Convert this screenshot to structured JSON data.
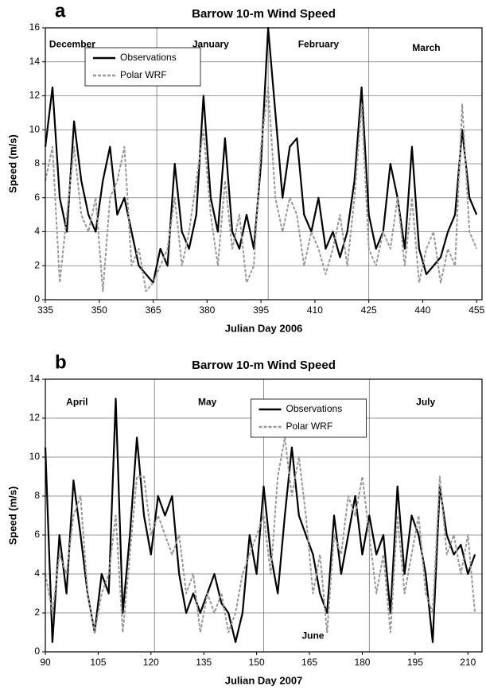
{
  "chart_data": [
    {
      "type": "line",
      "panel_label": "a",
      "title": "Barrow 10-m Wind Speed",
      "x_label": "Julian Day 2006",
      "y_label": "Speed (m/s)",
      "xlim": [
        335,
        456.5
      ],
      "xticks": [
        335,
        350,
        365,
        380,
        395,
        410,
        425,
        440,
        455
      ],
      "ylim": [
        0,
        16
      ],
      "yticks": [
        0,
        2,
        4,
        6,
        8,
        10,
        12,
        14,
        16
      ],
      "grid": true,
      "vlines": [
        366,
        397,
        425
      ],
      "legend": "upper left",
      "annotations": [
        {
          "text": "December",
          "x": 342.5,
          "y": 15
        },
        {
          "text": "January",
          "x": 381,
          "y": 15
        },
        {
          "text": "February",
          "x": 411,
          "y": 15
        },
        {
          "text": "March",
          "x": 441,
          "y": 14.8
        }
      ],
      "x": [
        335,
        337,
        339,
        341,
        343,
        345,
        347,
        349,
        351,
        353,
        355,
        357,
        359,
        361,
        363,
        365,
        367,
        369,
        371,
        373,
        375,
        377,
        379,
        381,
        383,
        385,
        387,
        389,
        391,
        393,
        395,
        397,
        399,
        401,
        403,
        405,
        407,
        409,
        411,
        413,
        415,
        417,
        419,
        421,
        423,
        425,
        427,
        429,
        431,
        433,
        435,
        437,
        439,
        441,
        443,
        445,
        447,
        449,
        451,
        453,
        455
      ],
      "series": [
        {
          "name": "Observations",
          "color": "#000000",
          "linestyle": "solid",
          "values": [
            9,
            12.5,
            6,
            4,
            10.5,
            7,
            5,
            4,
            7,
            9,
            5,
            6,
            4,
            2,
            1.5,
            1,
            3,
            2,
            8,
            4,
            3,
            5,
            12,
            6,
            4,
            9.5,
            4,
            3,
            5,
            3,
            8,
            16,
            11,
            6,
            9,
            9.5,
            5,
            4,
            6,
            3,
            4,
            2.5,
            4,
            7,
            12.5,
            5,
            3,
            4,
            8,
            6,
            3,
            9,
            3,
            1.5,
            2,
            2.5,
            4,
            5,
            10,
            6,
            5
          ]
        },
        {
          "name": "Polar WRF",
          "color": "#999999",
          "linestyle": "dashed",
          "values": [
            7,
            9,
            1,
            5,
            9,
            5,
            4,
            6,
            0.5,
            6,
            7,
            9,
            2,
            3,
            0.5,
            1,
            2,
            3,
            6,
            2,
            4,
            7,
            10,
            5,
            2,
            7,
            3,
            5,
            1,
            2,
            9,
            12.5,
            6,
            4,
            6,
            5,
            2,
            4,
            3,
            1.5,
            3,
            5,
            2,
            6,
            11.5,
            3,
            2,
            4,
            3,
            6,
            2,
            6,
            1,
            3,
            4,
            1,
            3,
            2,
            11.5,
            4,
            3
          ]
        }
      ]
    },
    {
      "type": "line",
      "panel_label": "b",
      "title": "Barrow 10-m Wind Speed",
      "x_label": "Julian Day 2007",
      "y_label": "Speed (m/s)",
      "xlim": [
        90,
        214
      ],
      "xticks": [
        90,
        105,
        120,
        135,
        150,
        165,
        180,
        195,
        210
      ],
      "ylim": [
        0,
        14
      ],
      "yticks": [
        0,
        2,
        4,
        6,
        8,
        10,
        12,
        14
      ],
      "grid": true,
      "vlines": [
        121,
        152,
        182
      ],
      "legend": "upper center",
      "annotations": [
        {
          "text": "April",
          "x": 99,
          "y": 12.8
        },
        {
          "text": "May",
          "x": 136,
          "y": 12.8
        },
        {
          "text": "June",
          "x": 166,
          "y": 0.8
        },
        {
          "text": "July",
          "x": 198,
          "y": 12.8
        }
      ],
      "x": [
        90,
        92,
        94,
        96,
        98,
        100,
        102,
        104,
        106,
        108,
        110,
        112,
        114,
        116,
        118,
        120,
        122,
        124,
        126,
        128,
        130,
        132,
        134,
        136,
        138,
        140,
        142,
        144,
        146,
        148,
        150,
        152,
        154,
        156,
        158,
        160,
        162,
        164,
        166,
        168,
        170,
        172,
        174,
        176,
        178,
        180,
        182,
        184,
        186,
        188,
        190,
        192,
        194,
        196,
        198,
        200,
        202,
        204,
        206,
        208,
        210,
        212
      ],
      "series": [
        {
          "name": "Observations",
          "color": "#000000",
          "linestyle": "solid",
          "values": [
            10.5,
            0.5,
            6,
            3,
            8.8,
            6,
            3,
            1,
            4,
            3,
            13,
            2,
            6,
            11,
            7,
            5,
            8,
            7,
            8,
            4,
            2,
            3,
            2,
            3,
            4,
            2.5,
            2,
            0.5,
            2,
            6,
            4,
            8.5,
            5,
            3,
            7,
            10.5,
            7,
            6,
            5,
            3,
            2,
            7,
            4,
            6,
            8,
            5,
            7,
            5,
            6,
            2,
            8.5,
            4,
            7,
            6,
            4,
            0.5,
            8.5,
            6,
            5,
            5.5,
            4,
            5
          ]
        },
        {
          "name": "Polar WRF",
          "color": "#999999",
          "linestyle": "dashed",
          "values": [
            4,
            2,
            5,
            4,
            7,
            8,
            3,
            1,
            3,
            4,
            7,
            1,
            5,
            9,
            9,
            6,
            7,
            6,
            5,
            6,
            3,
            4,
            1,
            3,
            2,
            3,
            1,
            2,
            4,
            5,
            6,
            7,
            4,
            9,
            11,
            8,
            10,
            7,
            3,
            5,
            1,
            6,
            5,
            8,
            7,
            9,
            6,
            3,
            5,
            1,
            7,
            3,
            5,
            7,
            3,
            2,
            9,
            5,
            6,
            4,
            6,
            2
          ]
        }
      ]
    }
  ]
}
